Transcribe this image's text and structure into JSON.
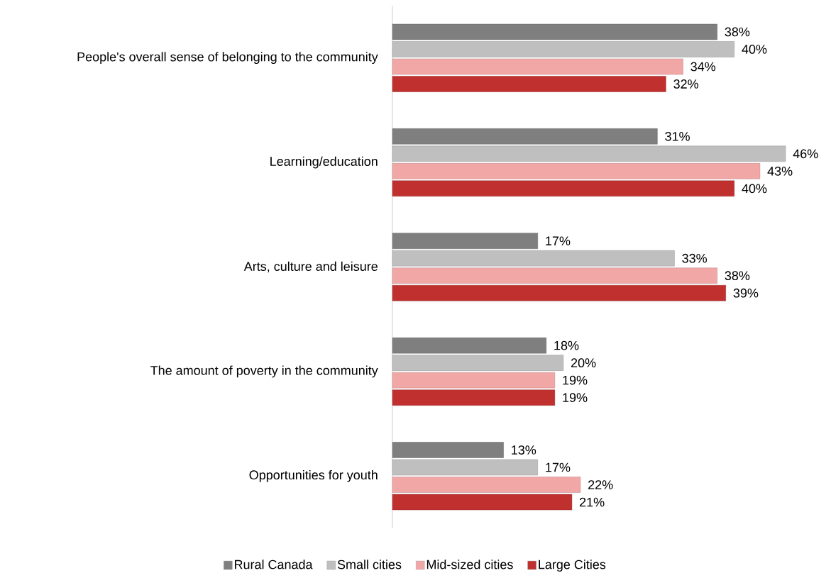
{
  "chart_data": {
    "type": "bar",
    "orientation": "horizontal",
    "legend": "bottom",
    "categories": [
      "People's overall sense of belonging to the community",
      "Learning/education",
      "Arts, culture and leisure",
      "The amount of poverty in the community",
      "Opportunities for youth"
    ],
    "series": [
      {
        "name": "Rural Canada",
        "color": "#7f7f7f",
        "values": [
          38,
          31,
          17,
          18,
          13
        ],
        "value_labels": [
          "38%",
          "31%",
          "17%",
          "18%",
          "13%"
        ]
      },
      {
        "name": "Small cities",
        "color": "#bfbfbf",
        "values": [
          40,
          46,
          33,
          20,
          17
        ],
        "value_labels": [
          "40%",
          "46%",
          "33%",
          "20%",
          "17%"
        ]
      },
      {
        "name": "Mid-sized cities",
        "color": "#f2a7a7",
        "values": [
          34,
          43,
          38,
          19,
          22
        ],
        "value_labels": [
          "34%",
          "43%",
          "38%",
          "19%",
          "22%"
        ]
      },
      {
        "name": "Large Cities",
        "color": "#c0302f",
        "values": [
          32,
          40,
          39,
          19,
          21
        ],
        "value_labels": [
          "32%",
          "40%",
          "39%",
          "19%",
          "21%"
        ]
      }
    ]
  }
}
